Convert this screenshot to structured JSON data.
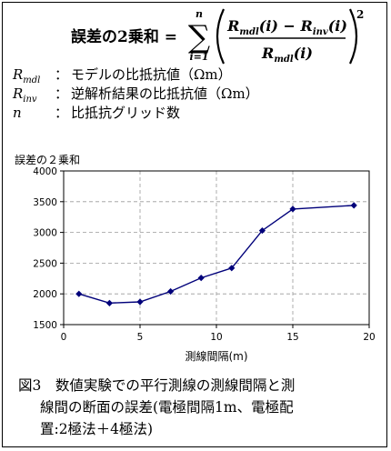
{
  "formula": {
    "lhs": "誤差の2乗和 =",
    "sum_lower": "i=1",
    "sum_upper": "n",
    "numerator": "R_mdl(i) − R_inv(i)",
    "denominator": "R_mdl(i)",
    "exponent": "2"
  },
  "definitions": [
    {
      "symbol": "R",
      "sub": "mdl",
      "text": "モデルの比抵抗値（Ωm）"
    },
    {
      "symbol": "R",
      "sub": "inv",
      "text": "逆解析結果の比抵抗値（Ωm）"
    },
    {
      "symbol": "n",
      "sub": "",
      "text": "比抵抗グリッド数"
    }
  ],
  "chart_data": {
    "type": "line",
    "ylabel": "誤差の２乗和",
    "xlabel": "測線間隔(m)",
    "xlim": [
      0,
      20
    ],
    "ylim": [
      1500,
      4000
    ],
    "xticks": [
      0,
      5,
      10,
      15,
      20
    ],
    "yticks": [
      1500,
      2000,
      2500,
      3000,
      3500,
      4000
    ],
    "grid": true,
    "series": [
      {
        "x": [
          1,
          3,
          5,
          7,
          9,
          11,
          13,
          15,
          19
        ],
        "y": [
          2000,
          1850,
          1870,
          2040,
          2260,
          2420,
          3030,
          3380,
          3440
        ]
      }
    ],
    "line_color": "#00007a"
  },
  "caption": {
    "line1": "図3　数値実験での平行測線の測線間隔と測",
    "line2": "線間の断面の誤差(電極間隔1m、電極配",
    "line3": "置:2極法＋4極法)"
  }
}
